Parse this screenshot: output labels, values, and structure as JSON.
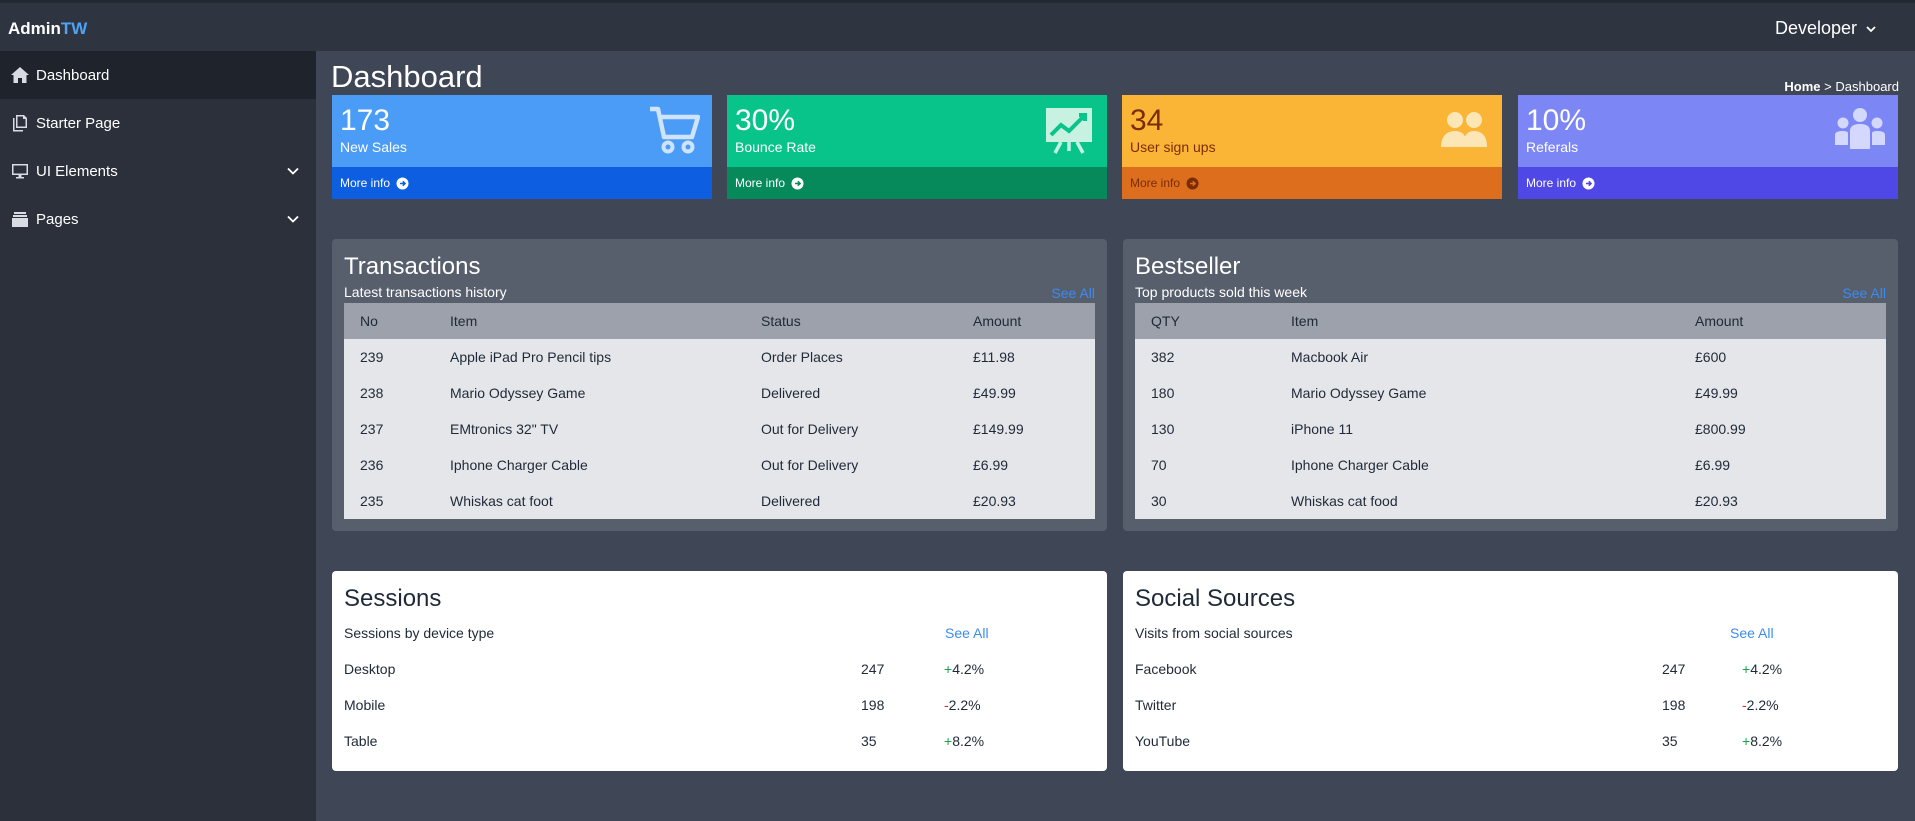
{
  "brand": {
    "part1": "Admin",
    "part2": "TW"
  },
  "user_menu": {
    "label": "Developer"
  },
  "sidebar": {
    "items": [
      {
        "label": "Dashboard",
        "icon": "home-icon"
      },
      {
        "label": "Starter Page",
        "icon": "pages-icon"
      },
      {
        "label": "UI Elements",
        "icon": "desktop-icon"
      },
      {
        "label": "Pages",
        "icon": "layers-icon"
      }
    ]
  },
  "page": {
    "title": "Dashboard"
  },
  "breadcrumb": {
    "home": "Home",
    "sep": ">",
    "current": "Dashboard"
  },
  "stats": [
    {
      "value": "173",
      "label": "New Sales",
      "more": "More info",
      "icon": "cart-icon",
      "color_top": "#4a9cf6",
      "color_bot": "#0d5ee0"
    },
    {
      "value": "30%",
      "label": "Bounce Rate",
      "more": "More info",
      "icon": "chart-board-icon",
      "color_top": "#08c48a",
      "color_bot": "#068a5c"
    },
    {
      "value": "34",
      "label": "User sign ups",
      "more": "More info",
      "icon": "users-icon",
      "color_top": "#fbb536",
      "color_bot": "#dd6e1e"
    },
    {
      "value": "10%",
      "label": "Referals",
      "more": "More info",
      "icon": "user-group-icon",
      "color_top": "#7c86f5",
      "color_bot": "#4f47e6"
    }
  ],
  "transactions": {
    "title": "Transactions",
    "subtitle": "Latest transactions history",
    "see_all": "See All",
    "columns": [
      "No",
      "Item",
      "Status",
      "Amount"
    ],
    "rows": [
      [
        "239",
        "Apple iPad Pro Pencil tips",
        "Order Places",
        "£11.98"
      ],
      [
        "238",
        "Mario Odyssey Game",
        "Delivered",
        "£49.99"
      ],
      [
        "237",
        "EMtronics 32\" TV",
        "Out for Delivery",
        "£149.99"
      ],
      [
        "236",
        "Iphone Charger Cable",
        "Out for Delivery",
        "£6.99"
      ],
      [
        "235",
        "Whiskas cat foot",
        "Delivered",
        "£20.93"
      ]
    ]
  },
  "bestseller": {
    "title": "Bestseller",
    "subtitle": "Top products sold this week",
    "see_all": "See All",
    "columns": [
      "QTY",
      "Item",
      "Amount"
    ],
    "rows": [
      [
        "382",
        "Macbook Air",
        "£600"
      ],
      [
        "180",
        "Mario Odyssey Game",
        "£49.99"
      ],
      [
        "130",
        "iPhone 11",
        "£800.99"
      ],
      [
        "70",
        "Iphone Charger Cable",
        "£6.99"
      ],
      [
        "30",
        "Whiskas cat food",
        "£20.93"
      ]
    ]
  },
  "sessions": {
    "title": "Sessions",
    "subtitle": "Sessions by device type",
    "see_all": "See All",
    "rows": [
      {
        "name": "Desktop",
        "count": "247",
        "sign": "+",
        "change": "4.2%",
        "trend": "up"
      },
      {
        "name": "Mobile",
        "count": "198",
        "sign": "-",
        "change": "2.2%",
        "trend": "down"
      },
      {
        "name": "Table",
        "count": "35",
        "sign": "+",
        "change": "8.2%",
        "trend": "up"
      }
    ]
  },
  "social": {
    "title": "Social Sources",
    "subtitle": "Visits from social sources",
    "see_all": "See All",
    "rows": [
      {
        "name": "Facebook",
        "count": "247",
        "sign": "+",
        "change": "4.2%",
        "trend": "up"
      },
      {
        "name": "Twitter",
        "count": "198",
        "sign": "-",
        "change": "2.2%",
        "trend": "down"
      },
      {
        "name": "YouTube",
        "count": "35",
        "sign": "+",
        "change": "8.2%",
        "trend": "up"
      }
    ]
  }
}
